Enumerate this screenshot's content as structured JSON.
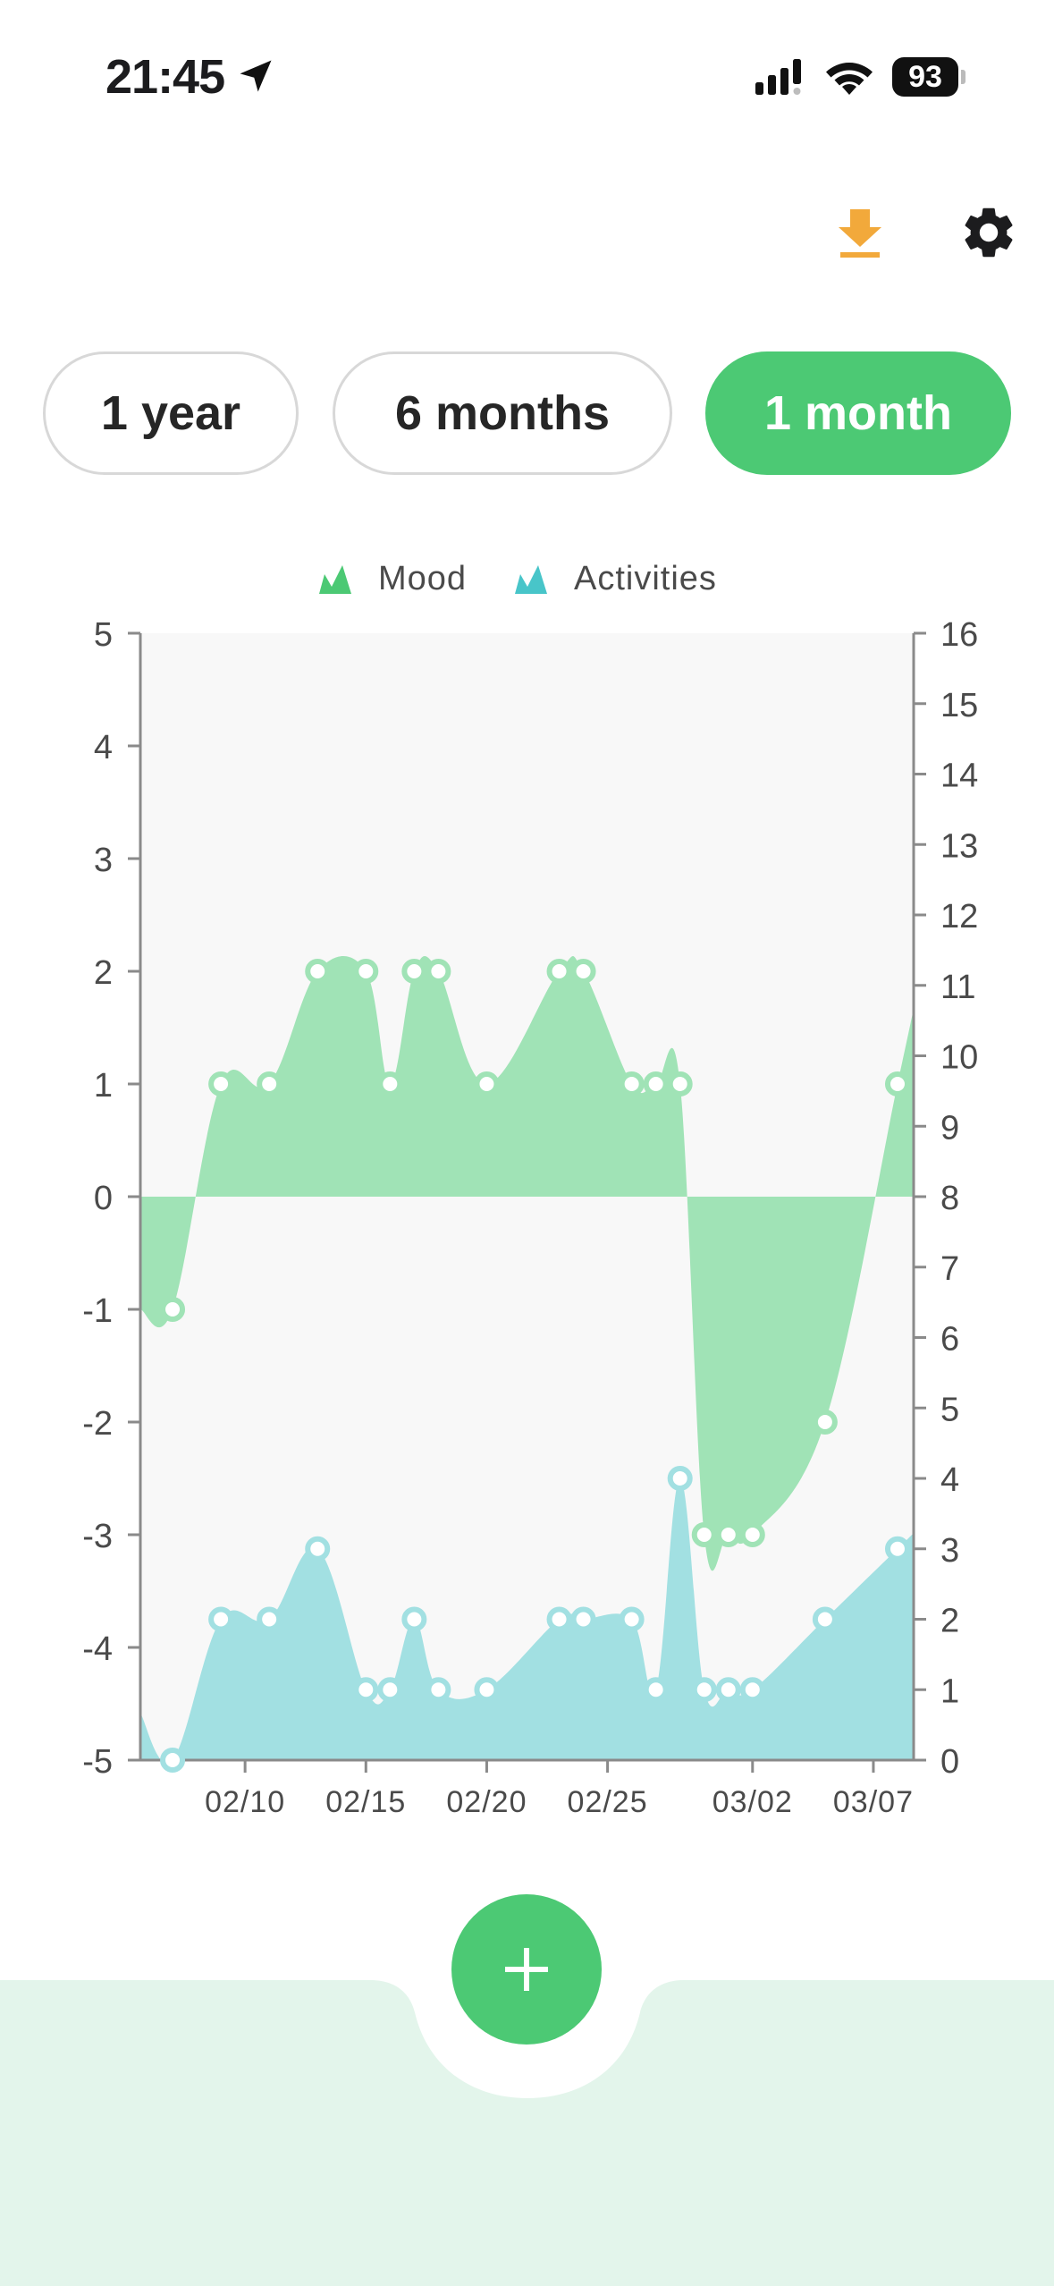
{
  "status_bar": {
    "time": "21:45",
    "battery": "93"
  },
  "toolbar": {
    "download_icon": "download-icon",
    "settings_icon": "gear-icon"
  },
  "ranges": [
    {
      "label": "1 year",
      "active": false
    },
    {
      "label": "6 months",
      "active": false
    },
    {
      "label": "1 month",
      "active": true
    }
  ],
  "colors": {
    "accent": "#4cc974",
    "mood": "#a0e3b6",
    "mood_point_stroke": "#a0e3b6",
    "activities": "#a2e0e2",
    "activities_point_stroke": "#a2e0e2",
    "download": "#f2a93b",
    "plot_bg": "#f8f8f8",
    "bottom_bar": "#e3f5eb"
  },
  "chart_data": {
    "type": "area",
    "legend": {
      "position": "top-center"
    },
    "x_axis": {
      "tick_labels": [
        "02/10",
        "02/15",
        "02/20",
        "02/25",
        "03/02",
        "03/07"
      ],
      "tick_days": [
        "2024-02-10",
        "2024-02-15",
        "2024-02-20",
        "2024-02-25",
        "2024-03-02",
        "2024-03-07"
      ],
      "range": [
        "2024-02-05 16:00",
        "2024-03-08 16:00"
      ]
    },
    "y_axis_left": {
      "range": [
        -5,
        5
      ],
      "ticks": [
        5,
        4,
        3,
        2,
        1,
        0,
        -1,
        -2,
        -3,
        -4,
        -5
      ]
    },
    "y_axis_right": {
      "range": [
        0,
        16
      ],
      "ticks": [
        16,
        15,
        14,
        13,
        12,
        11,
        10,
        9,
        8,
        7,
        6,
        5,
        4,
        3,
        2,
        1,
        0
      ]
    },
    "series": [
      {
        "name": "Mood",
        "axis": "left",
        "points": [
          [
            "2024-02-07",
            -1
          ],
          [
            "2024-02-09",
            1
          ],
          [
            "2024-02-11",
            1
          ],
          [
            "2024-02-13",
            2
          ],
          [
            "2024-02-15",
            2
          ],
          [
            "2024-02-16",
            1
          ],
          [
            "2024-02-17",
            2
          ],
          [
            "2024-02-18",
            2
          ],
          [
            "2024-02-20",
            1
          ],
          [
            "2024-02-23",
            2
          ],
          [
            "2024-02-24",
            2
          ],
          [
            "2024-02-26",
            1
          ],
          [
            "2024-02-27",
            1
          ],
          [
            "2024-02-28",
            1
          ],
          [
            "2024-02-29",
            -3
          ],
          [
            "2024-03-01",
            -3
          ],
          [
            "2024-03-02",
            -3
          ],
          [
            "2024-03-05",
            -2
          ],
          [
            "2024-03-08",
            1
          ]
        ]
      },
      {
        "name": "Activities",
        "axis": "right",
        "points": [
          [
            "2024-02-07",
            0
          ],
          [
            "2024-02-09",
            2
          ],
          [
            "2024-02-11",
            2
          ],
          [
            "2024-02-13",
            3
          ],
          [
            "2024-02-15",
            1
          ],
          [
            "2024-02-16",
            1
          ],
          [
            "2024-02-17",
            2
          ],
          [
            "2024-02-18",
            1
          ],
          [
            "2024-02-20",
            1
          ],
          [
            "2024-02-23",
            2
          ],
          [
            "2024-02-24",
            2
          ],
          [
            "2024-02-26",
            2
          ],
          [
            "2024-02-27",
            1
          ],
          [
            "2024-02-28",
            4
          ],
          [
            "2024-02-29",
            1
          ],
          [
            "2024-03-01",
            1
          ],
          [
            "2024-03-02",
            1
          ],
          [
            "2024-03-05",
            2
          ],
          [
            "2024-03-08",
            3
          ]
        ]
      }
    ]
  }
}
